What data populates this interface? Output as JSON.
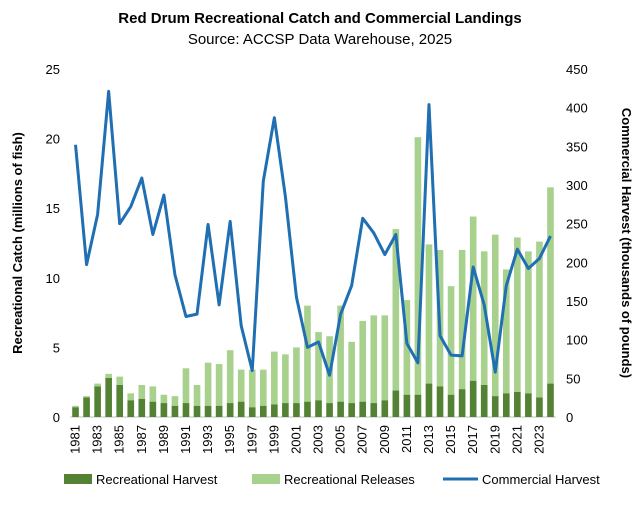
{
  "chart_data": {
    "type": "bar+line",
    "title": "Red Drum Recreational Catch and Commercial Landings",
    "subtitle": "Source: ACCSP Data Warehouse, 2025",
    "ylabel_left": "Recreational Catch (millions of fish)",
    "ylabel_right": "Commercial Harvest (thousands of pounds)",
    "ylim_left": [
      0,
      25
    ],
    "yticks_left": [
      "0",
      "5",
      "10",
      "15",
      "20",
      "25"
    ],
    "ylim_right": [
      0,
      450
    ],
    "yticks_right": [
      "0",
      "50",
      "100",
      "150",
      "200",
      "250",
      "300",
      "350",
      "400",
      "450"
    ],
    "x": [
      1981,
      1982,
      1983,
      1984,
      1985,
      1986,
      1987,
      1988,
      1989,
      1990,
      1991,
      1992,
      1993,
      1994,
      1995,
      1996,
      1997,
      1998,
      1999,
      2000,
      2001,
      2002,
      2003,
      2004,
      2005,
      2006,
      2007,
      2008,
      2009,
      2010,
      2011,
      2012,
      2013,
      2014,
      2015,
      2016,
      2017,
      2018,
      2019,
      2020,
      2021,
      2022,
      2023,
      2024
    ],
    "xtick_labels": [
      "1981",
      "1983",
      "1985",
      "1987",
      "1989",
      "1991",
      "1993",
      "1995",
      "1997",
      "1999",
      "2001",
      "2003",
      "2005",
      "2007",
      "2009",
      "2011",
      "2013",
      "2015",
      "2017",
      "2019",
      "2021",
      "2023"
    ],
    "series": [
      {
        "name": "Recreational Harvest",
        "kind": "stacked-bar",
        "axis": "left",
        "color": "#548235",
        "values": [
          0.7,
          1.4,
          2.2,
          2.8,
          2.3,
          1.2,
          1.3,
          1.1,
          1.0,
          0.8,
          1.0,
          0.8,
          0.8,
          0.8,
          1.0,
          1.1,
          0.7,
          0.8,
          0.9,
          1.0,
          1.0,
          1.1,
          1.2,
          1.0,
          1.1,
          1.0,
          1.1,
          1.0,
          1.2,
          1.9,
          1.6,
          1.6,
          2.4,
          2.2,
          1.6,
          2.0,
          2.6,
          2.3,
          1.5,
          1.7,
          1.8,
          1.7,
          1.4,
          2.4
        ]
      },
      {
        "name": "Recreational Releases",
        "kind": "stacked-bar",
        "axis": "left",
        "color": "#a9d18e",
        "values": [
          0.1,
          0.1,
          0.2,
          0.3,
          0.6,
          0.5,
          1.0,
          1.1,
          0.6,
          0.7,
          2.5,
          1.5,
          3.1,
          3.0,
          3.8,
          2.3,
          2.7,
          2.6,
          3.8,
          3.5,
          4.0,
          6.9,
          4.9,
          4.8,
          6.9,
          4.4,
          5.8,
          6.3,
          6.1,
          11.6,
          6.8,
          18.5,
          10.0,
          9.8,
          7.8,
          10.0,
          11.8,
          9.6,
          11.6,
          8.9,
          11.1,
          10.2,
          11.2,
          14.1
        ]
      },
      {
        "name": "Commercial Harvest",
        "kind": "line",
        "axis": "right",
        "color": "#1f6fb2",
        "values": [
          352,
          197,
          262,
          421,
          250,
          272,
          309,
          236,
          287,
          184,
          130,
          133,
          249,
          145,
          253,
          118,
          60,
          305,
          387,
          285,
          155,
          90,
          97,
          54,
          133,
          170,
          257,
          238,
          210,
          236,
          95,
          70,
          404,
          105,
          80,
          79,
          194,
          145,
          58,
          170,
          217,
          192,
          205,
          234
        ]
      }
    ],
    "legend_position": "bottom"
  }
}
